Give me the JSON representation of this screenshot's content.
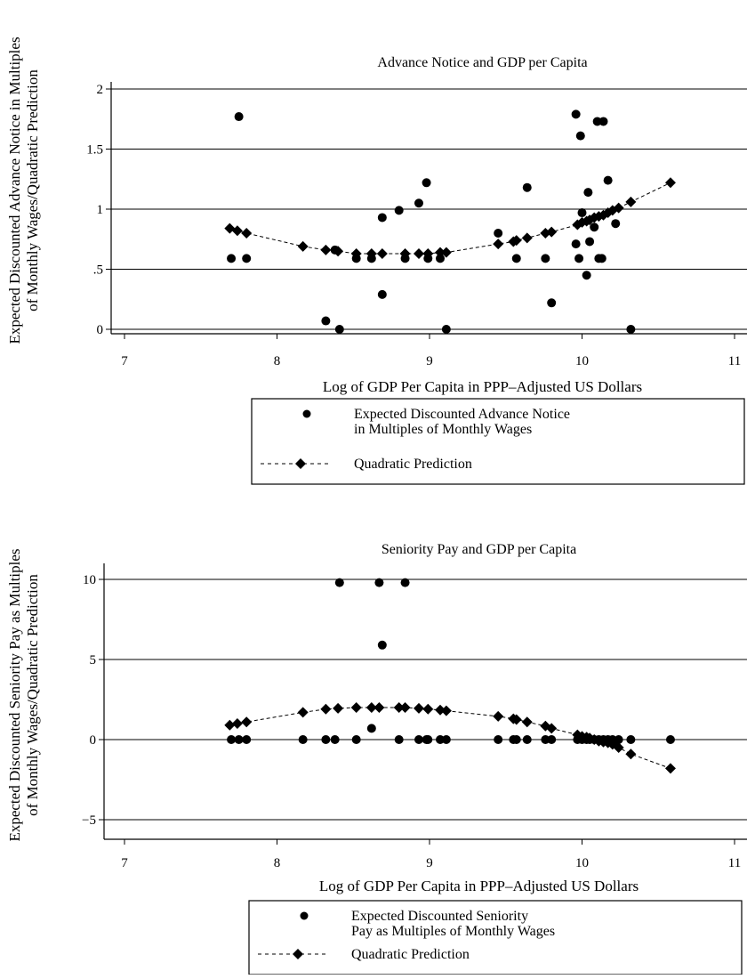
{
  "chart_data": [
    {
      "type": "scatter",
      "title": "Advance Notice and GDP per Capita",
      "xlabel": "Log of GDP Per Capita in PPP–Adjusted US Dollars",
      "ylabel_line1": "Expected Discounted Advance Notice in Multiples",
      "ylabel_line2": "of Monthly Wages/Quadratic Prediction",
      "xlim": [
        7,
        11
      ],
      "ylim": [
        -0.1,
        2.1
      ],
      "x_ticks": [
        7,
        8,
        9,
        10,
        11
      ],
      "x_tick_labels": [
        "7",
        "8",
        "9",
        "10",
        "11"
      ],
      "y_ticks": [
        0,
        0.5,
        1,
        1.5,
        2
      ],
      "y_tick_labels": [
        "0",
        ".5",
        "1",
        "1.5",
        "2"
      ],
      "grid": true,
      "legend_position": "bottom",
      "series": [
        {
          "name": "Expected Discounted Advance Notice in Multiples of Monthly Wages",
          "marker": "circle",
          "points": [
            [
              7.7,
              0.59
            ],
            [
              7.75,
              1.77
            ],
            [
              7.8,
              0.59
            ],
            [
              8.32,
              0.07
            ],
            [
              8.38,
              0.66
            ],
            [
              8.41,
              0.0
            ],
            [
              8.52,
              0.59
            ],
            [
              8.62,
              0.59
            ],
            [
              8.69,
              0.93
            ],
            [
              8.69,
              0.29
            ],
            [
              8.8,
              0.99
            ],
            [
              8.84,
              0.59
            ],
            [
              8.93,
              1.05
            ],
            [
              8.98,
              1.22
            ],
            [
              8.99,
              0.59
            ],
            [
              9.07,
              0.59
            ],
            [
              9.11,
              0.0
            ],
            [
              9.45,
              0.8
            ],
            [
              9.57,
              0.59
            ],
            [
              9.64,
              1.18
            ],
            [
              9.76,
              0.59
            ],
            [
              9.8,
              0.22
            ],
            [
              9.96,
              1.79
            ],
            [
              9.96,
              0.71
            ],
            [
              9.98,
              0.59
            ],
            [
              9.99,
              1.61
            ],
            [
              10.0,
              0.97
            ],
            [
              10.03,
              0.45
            ],
            [
              10.04,
              1.14
            ],
            [
              10.05,
              0.73
            ],
            [
              10.08,
              0.85
            ],
            [
              10.1,
              1.73
            ],
            [
              10.11,
              0.59
            ],
            [
              10.13,
              0.59
            ],
            [
              10.14,
              1.73
            ],
            [
              10.17,
              1.24
            ],
            [
              10.22,
              0.88
            ],
            [
              10.32,
              0.0
            ]
          ]
        },
        {
          "name": "Quadratic Prediction",
          "marker": "diamond",
          "line": "dashed",
          "points": [
            [
              7.69,
              0.84
            ],
            [
              7.74,
              0.82
            ],
            [
              7.8,
              0.8
            ],
            [
              8.17,
              0.69
            ],
            [
              8.32,
              0.66
            ],
            [
              8.4,
              0.65
            ],
            [
              8.52,
              0.63
            ],
            [
              8.62,
              0.63
            ],
            [
              8.69,
              0.63
            ],
            [
              8.84,
              0.63
            ],
            [
              8.93,
              0.63
            ],
            [
              8.99,
              0.63
            ],
            [
              9.07,
              0.64
            ],
            [
              9.11,
              0.64
            ],
            [
              9.45,
              0.71
            ],
            [
              9.55,
              0.73
            ],
            [
              9.57,
              0.74
            ],
            [
              9.64,
              0.76
            ],
            [
              9.76,
              0.8
            ],
            [
              9.8,
              0.81
            ],
            [
              9.97,
              0.87
            ],
            [
              10.0,
              0.89
            ],
            [
              10.03,
              0.9
            ],
            [
              10.05,
              0.91
            ],
            [
              10.08,
              0.93
            ],
            [
              10.11,
              0.94
            ],
            [
              10.14,
              0.95
            ],
            [
              10.17,
              0.97
            ],
            [
              10.2,
              0.99
            ],
            [
              10.24,
              1.01
            ],
            [
              10.32,
              1.06
            ],
            [
              10.58,
              1.22
            ]
          ]
        }
      ],
      "legend": [
        {
          "line1": "Expected Discounted Advance Notice",
          "line2": "in Multiples of Monthly Wages",
          "marker": "circle"
        },
        {
          "line1": "Quadratic Prediction",
          "line2": "",
          "marker": "diamond-dashed"
        }
      ]
    },
    {
      "type": "scatter",
      "title": "Seniority Pay and GDP per Capita",
      "xlabel": "Log of GDP Per Capita in PPP–Adjusted US Dollars",
      "ylabel_line1": "Expected Discounted Seniority Pay as Multiples",
      "ylabel_line2": "of Monthly Wages/Quadratic Prediction",
      "xlim": [
        7,
        11
      ],
      "ylim": [
        -5.5,
        10.5
      ],
      "x_ticks": [
        7,
        8,
        9,
        10,
        11
      ],
      "x_tick_labels": [
        "7",
        "8",
        "9",
        "10",
        "11"
      ],
      "y_ticks": [
        -5,
        0,
        5,
        10
      ],
      "y_tick_labels": [
        "−5",
        "0",
        "5",
        "10"
      ],
      "grid": true,
      "legend_position": "bottom",
      "series": [
        {
          "name": "Expected Discounted Seniority Pay as Multiples of Monthly Wages",
          "marker": "circle",
          "points": [
            [
              7.7,
              0.0
            ],
            [
              7.75,
              0.0
            ],
            [
              7.8,
              0.0
            ],
            [
              8.17,
              0.0
            ],
            [
              8.32,
              0.0
            ],
            [
              8.38,
              0.0
            ],
            [
              8.41,
              9.8
            ],
            [
              8.52,
              0.0
            ],
            [
              8.62,
              0.7
            ],
            [
              8.67,
              9.8
            ],
            [
              8.69,
              5.9
            ],
            [
              8.8,
              0.0
            ],
            [
              8.84,
              9.8
            ],
            [
              8.93,
              0.0
            ],
            [
              8.98,
              0.0
            ],
            [
              8.99,
              0.0
            ],
            [
              9.07,
              0.0
            ],
            [
              9.11,
              0.0
            ],
            [
              9.45,
              0.0
            ],
            [
              9.55,
              0.0
            ],
            [
              9.57,
              0.0
            ],
            [
              9.64,
              0.0
            ],
            [
              9.76,
              0.0
            ],
            [
              9.8,
              0.0
            ],
            [
              9.97,
              0.0
            ],
            [
              10.0,
              0.0
            ],
            [
              10.03,
              0.0
            ],
            [
              10.05,
              0.0
            ],
            [
              10.08,
              0.0
            ],
            [
              10.11,
              0.0
            ],
            [
              10.14,
              0.0
            ],
            [
              10.17,
              0.0
            ],
            [
              10.2,
              0.0
            ],
            [
              10.24,
              0.0
            ],
            [
              10.32,
              0.0
            ],
            [
              10.58,
              0.0
            ]
          ]
        },
        {
          "name": "Quadratic Prediction",
          "marker": "diamond",
          "line": "dashed",
          "points": [
            [
              7.69,
              0.9
            ],
            [
              7.74,
              1.0
            ],
            [
              7.8,
              1.1
            ],
            [
              8.17,
              1.7
            ],
            [
              8.32,
              1.9
            ],
            [
              8.4,
              1.95
            ],
            [
              8.52,
              2.0
            ],
            [
              8.62,
              2.0
            ],
            [
              8.67,
              2.0
            ],
            [
              8.8,
              2.0
            ],
            [
              8.84,
              2.0
            ],
            [
              8.93,
              1.95
            ],
            [
              8.99,
              1.9
            ],
            [
              9.07,
              1.85
            ],
            [
              9.11,
              1.8
            ],
            [
              9.45,
              1.45
            ],
            [
              9.55,
              1.3
            ],
            [
              9.57,
              1.25
            ],
            [
              9.64,
              1.1
            ],
            [
              9.76,
              0.85
            ],
            [
              9.8,
              0.7
            ],
            [
              9.97,
              0.3
            ],
            [
              10.0,
              0.2
            ],
            [
              10.03,
              0.15
            ],
            [
              10.05,
              0.1
            ],
            [
              10.08,
              0.0
            ],
            [
              10.11,
              -0.1
            ],
            [
              10.14,
              -0.15
            ],
            [
              10.17,
              -0.2
            ],
            [
              10.2,
              -0.3
            ],
            [
              10.24,
              -0.5
            ],
            [
              10.32,
              -0.9
            ],
            [
              10.58,
              -1.8
            ]
          ]
        }
      ],
      "legend": [
        {
          "line1": "Expected Discounted Seniority",
          "line2": "Pay as Multiples of Monthly Wages",
          "marker": "circle"
        },
        {
          "line1": "Quadratic Prediction",
          "line2": "",
          "marker": "diamond-dashed"
        }
      ]
    }
  ]
}
